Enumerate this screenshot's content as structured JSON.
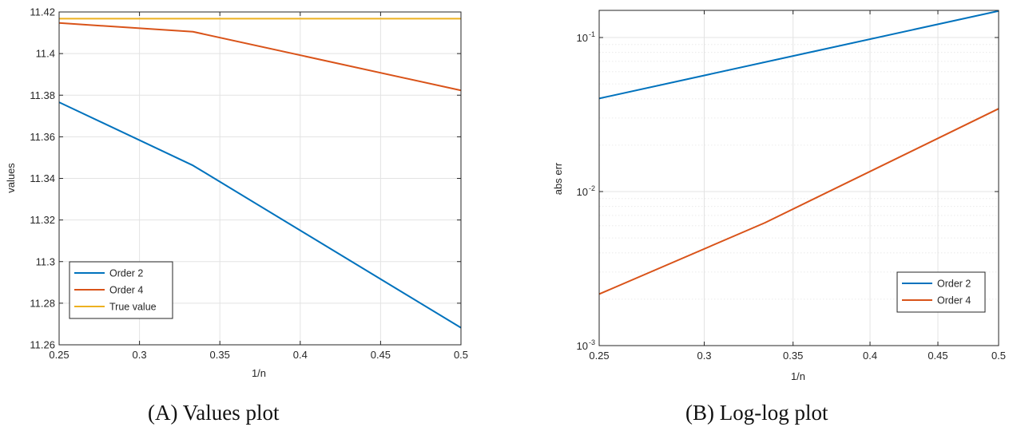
{
  "chart_data": [
    {
      "type": "line",
      "caption_label": "(A)",
      "caption_text": "Values plot",
      "xlabel": "1/n",
      "ylabel": "values",
      "xlim": [
        0.25,
        0.5
      ],
      "ylim": [
        11.26,
        11.42
      ],
      "xscale": "linear",
      "yscale": "linear",
      "grid": true,
      "legend_placement": "bottom-left",
      "xticks": [
        0.25,
        0.3,
        0.35,
        0.4,
        0.45,
        0.5
      ],
      "xtick_labels": [
        "0.25",
        "0.3",
        "0.35",
        "0.4",
        "0.45",
        "0.5"
      ],
      "yticks": [
        11.26,
        11.28,
        11.3,
        11.32,
        11.34,
        11.36,
        11.38,
        11.4,
        11.42
      ],
      "ytick_labels": [
        "11.26",
        "11.28",
        "11.3",
        "11.32",
        "11.34",
        "11.36",
        "11.38",
        "11.4",
        "11.42"
      ],
      "series": [
        {
          "name": "Order 2",
          "color": "#0072BD",
          "x": [
            0.25,
            0.3333,
            0.5
          ],
          "y": [
            11.3766,
            11.3462,
            11.2682
          ]
        },
        {
          "name": "Order 4",
          "color": "#D95319",
          "x": [
            0.25,
            0.3333,
            0.5
          ],
          "y": [
            11.4147,
            11.4105,
            11.3823
          ]
        },
        {
          "name": "True value",
          "color": "#EDB120",
          "x": [
            0.25,
            0.3333,
            0.5
          ],
          "y": [
            11.4168,
            11.4168,
            11.4168
          ]
        }
      ]
    },
    {
      "type": "line",
      "caption_label": "(B)",
      "caption_text": "Log-log plot",
      "xlabel": "1/n",
      "ylabel": "abs err",
      "xlim": [
        0.25,
        0.5
      ],
      "ylim": [
        0.001,
        0.15
      ],
      "xscale": "log",
      "yscale": "log",
      "grid": true,
      "minor_grid": true,
      "legend_placement": "bottom-right",
      "xticks": [
        0.25,
        0.3,
        0.35,
        0.4,
        0.45,
        0.5
      ],
      "xtick_labels": [
        "0.25",
        "0.3",
        "0.35",
        "0.4",
        "0.45",
        "0.5"
      ],
      "yticks": [
        0.001,
        0.01,
        0.1
      ],
      "ytick_mantissa": [
        "10",
        "10",
        "10"
      ],
      "ytick_exponent": [
        "-3",
        "-2",
        "-1"
      ],
      "series": [
        {
          "name": "Order 2",
          "color": "#0072BD",
          "x": [
            0.25,
            0.5
          ],
          "y": [
            0.0402,
            0.1487
          ]
        },
        {
          "name": "Order 4",
          "color": "#D95319",
          "x": [
            0.25,
            0.3333,
            0.5
          ],
          "y": [
            0.00216,
            0.00627,
            0.0345
          ]
        }
      ]
    }
  ]
}
